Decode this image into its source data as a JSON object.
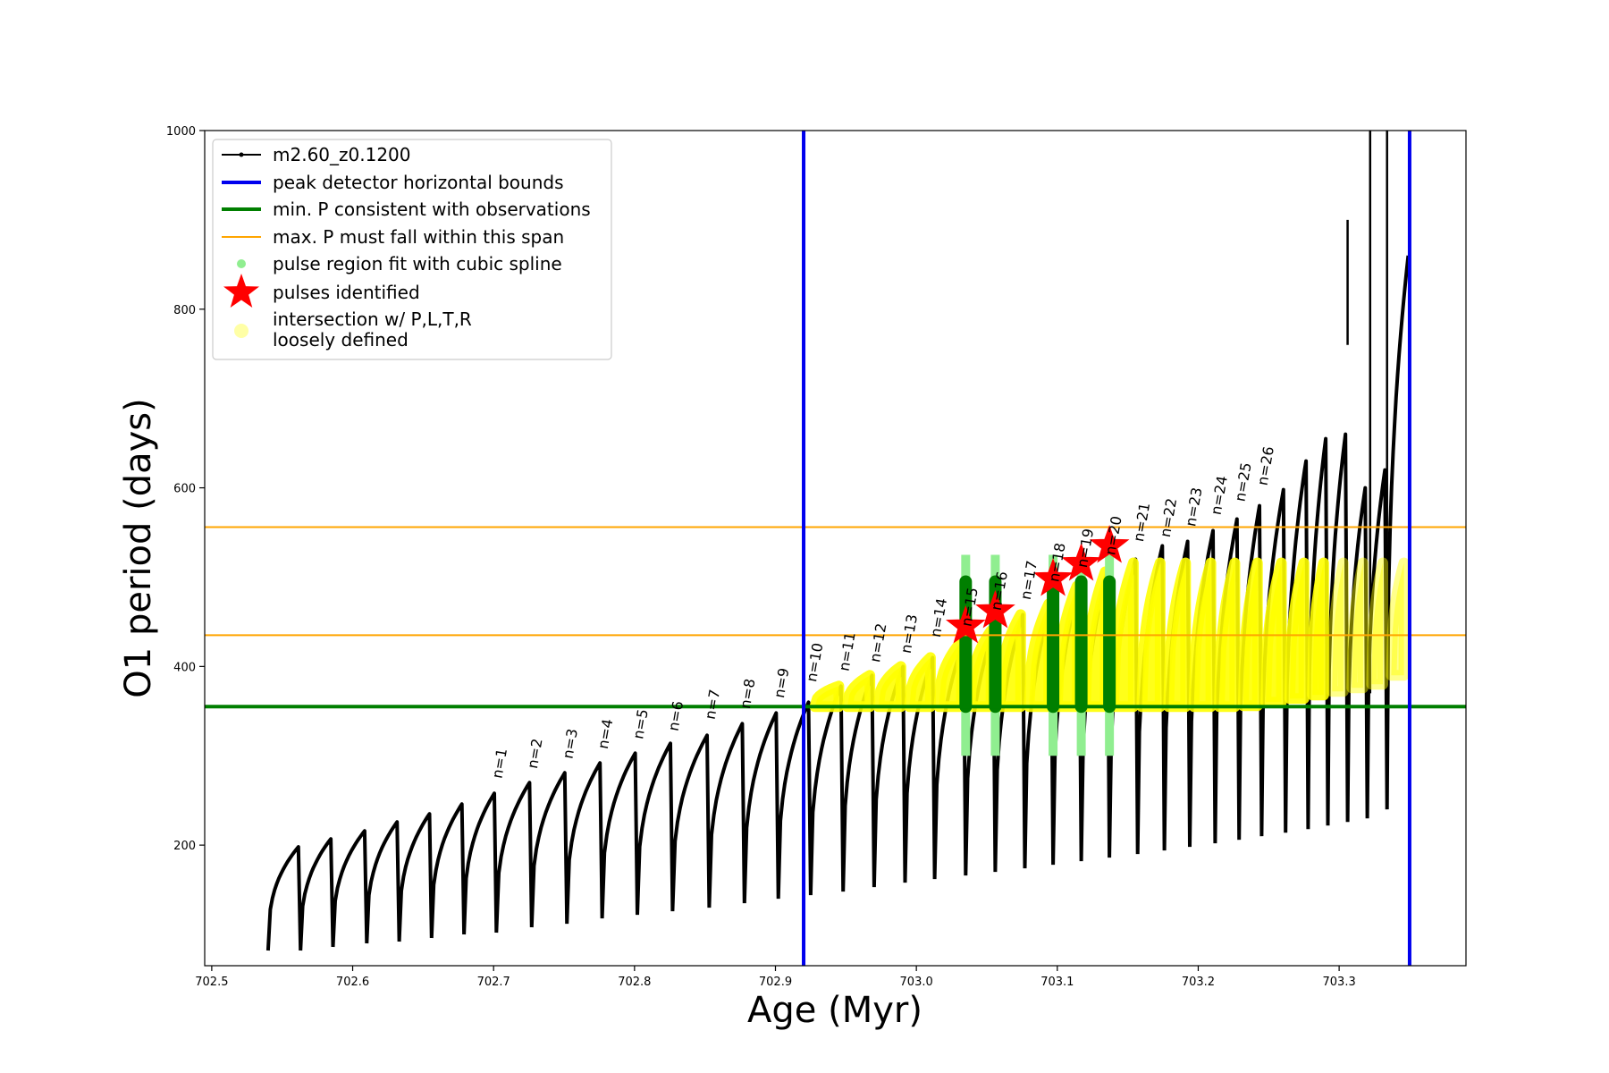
{
  "chart_data": {
    "type": "line",
    "xlabel": "Age (Myr)",
    "ylabel": "O1 period (days)",
    "xlim": [
      702.495,
      703.39
    ],
    "ylim": [
      65,
      1000
    ],
    "x_ticks": [
      702.5,
      702.6,
      702.7,
      702.8,
      702.9,
      703.0,
      703.1,
      703.2,
      703.3
    ],
    "x_tick_labels": [
      "702.5",
      "702.6",
      "702.7",
      "702.8",
      "702.9",
      "703.0",
      "703.1",
      "703.2",
      "703.3"
    ],
    "y_ticks": [
      200,
      400,
      600,
      800,
      1000
    ],
    "y_tick_labels": [
      "200",
      "400",
      "600",
      "800",
      "1000"
    ],
    "colors": {
      "track": "#000000",
      "bounds": "#0000ee",
      "min_p": "#007f00",
      "max_p": "#ffa500",
      "spline": "#90ee90",
      "pulse": "#ff0000",
      "loose": "#ffff00"
    },
    "series": [
      {
        "name": "m2.60_z0.1200",
        "kind": "track"
      },
      {
        "name": "peak detector horizontal bounds",
        "kind": "vline",
        "x": [
          702.92,
          703.35
        ]
      },
      {
        "name": "min. P consistent with observations",
        "kind": "hline",
        "y": [
          355
        ]
      },
      {
        "name": "max. P must fall within this span",
        "kind": "hline",
        "y": [
          435,
          556
        ]
      },
      {
        "name": "pulse region fit with cubic spline",
        "kind": "marker"
      },
      {
        "name": "pulses identified",
        "kind": "star",
        "x": [
          703.035,
          703.056,
          703.097,
          703.117,
          703.137
        ],
        "y": [
          445,
          462,
          498,
          515,
          535
        ]
      },
      {
        "name": "intersection w/ P,L,T,R\nloosely defined",
        "kind": "loose"
      }
    ],
    "pulses": [
      {
        "n": 0,
        "x": 702.54,
        "low": 82,
        "high": 198
      },
      {
        "n": 0,
        "x": 702.563,
        "low": 82,
        "high": 207
      },
      {
        "n": 0,
        "x": 702.586,
        "low": 86,
        "high": 216
      },
      {
        "n": 0,
        "x": 702.61,
        "low": 90,
        "high": 226
      },
      {
        "n": 0,
        "x": 702.633,
        "low": 92,
        "high": 235
      },
      {
        "n": 0,
        "x": 702.656,
        "low": 96,
        "high": 246
      },
      {
        "n": 0,
        "x": 702.679,
        "low": 100,
        "high": 258
      },
      {
        "n": 1,
        "x": 702.702,
        "low": 102,
        "high": 270
      },
      {
        "n": 2,
        "x": 702.727,
        "low": 108,
        "high": 281
      },
      {
        "n": 3,
        "x": 702.752,
        "low": 112,
        "high": 292
      },
      {
        "n": 4,
        "x": 702.777,
        "low": 118,
        "high": 303
      },
      {
        "n": 5,
        "x": 702.802,
        "low": 122,
        "high": 314
      },
      {
        "n": 6,
        "x": 702.827,
        "low": 126,
        "high": 323
      },
      {
        "n": 7,
        "x": 702.853,
        "low": 130,
        "high": 336
      },
      {
        "n": 8,
        "x": 702.878,
        "low": 135,
        "high": 348
      },
      {
        "n": 9,
        "x": 702.902,
        "low": 140,
        "high": 360
      },
      {
        "n": 10,
        "x": 702.925,
        "low": 144,
        "high": 378
      },
      {
        "n": 11,
        "x": 702.948,
        "low": 148,
        "high": 390
      },
      {
        "n": 12,
        "x": 702.97,
        "low": 153,
        "high": 400
      },
      {
        "n": 13,
        "x": 702.992,
        "low": 158,
        "high": 410
      },
      {
        "n": 14,
        "x": 703.013,
        "low": 162,
        "high": 428
      },
      {
        "n": 15,
        "x": 703.035,
        "low": 166,
        "high": 440
      },
      {
        "n": 16,
        "x": 703.056,
        "low": 170,
        "high": 458
      },
      {
        "n": 17,
        "x": 703.077,
        "low": 174,
        "high": 470
      },
      {
        "n": 18,
        "x": 703.097,
        "low": 178,
        "high": 490
      },
      {
        "n": 19,
        "x": 703.117,
        "low": 182,
        "high": 506
      },
      {
        "n": 20,
        "x": 703.137,
        "low": 186,
        "high": 520
      },
      {
        "n": 21,
        "x": 703.157,
        "low": 190,
        "high": 535
      },
      {
        "n": 22,
        "x": 703.176,
        "low": 194,
        "high": 540
      },
      {
        "n": 23,
        "x": 703.194,
        "low": 198,
        "high": 552
      },
      {
        "n": 24,
        "x": 703.212,
        "low": 202,
        "high": 565
      },
      {
        "n": 25,
        "x": 703.229,
        "low": 206,
        "high": 580
      },
      {
        "n": 26,
        "x": 703.245,
        "low": 210,
        "high": 598
      },
      {
        "n": 0,
        "x": 703.262,
        "low": 214,
        "high": 630
      },
      {
        "n": 0,
        "x": 703.278,
        "low": 218,
        "high": 655
      },
      {
        "n": 0,
        "x": 703.292,
        "low": 222,
        "high": 660
      },
      {
        "n": 0,
        "x": 703.306,
        "low": 226,
        "high": 600
      },
      {
        "n": 0,
        "x": 703.32,
        "low": 230,
        "high": 620
      },
      {
        "n": 0,
        "x": 703.334,
        "low": 240,
        "high": 860
      }
    ],
    "pulse_labels": [
      "n=1",
      "n=2",
      "n=3",
      "n=4",
      "n=5",
      "n=6",
      "n=7",
      "n=8",
      "n=9",
      "n=10",
      "n=11",
      "n=12",
      "n=13",
      "n=14",
      "n=15",
      "n=16",
      "n=17",
      "n=18",
      "n=19",
      "n=20",
      "n=21",
      "n=22",
      "n=23",
      "n=24",
      "n=25",
      "n=26"
    ],
    "spikes": [
      {
        "x": 703.322,
        "y0": 370,
        "y1": 1000
      },
      {
        "x": 703.334,
        "y0": 420,
        "y1": 1000
      },
      {
        "x": 703.306,
        "y0": 760,
        "y1": 900
      }
    ],
    "legend_position": "upper-left"
  }
}
